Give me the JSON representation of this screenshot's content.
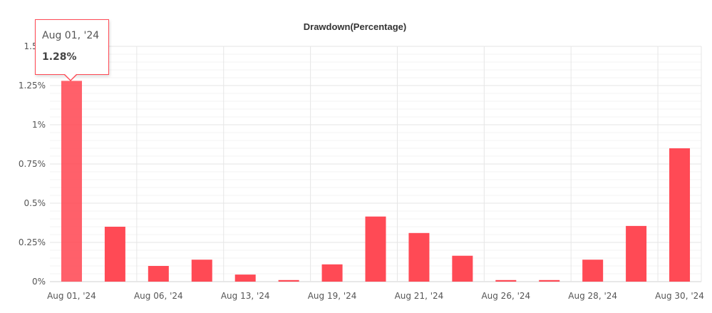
{
  "chart_data": {
    "type": "bar",
    "title": "Drawdown(Percentage)",
    "xlabel": "",
    "ylabel": "",
    "ylim": [
      0,
      1.5
    ],
    "yticks": [
      "0%",
      "0.25%",
      "0.5%",
      "0.75%",
      "1%",
      "1.25%",
      "1.5%"
    ],
    "xtick_labels": [
      "Aug 01, '24",
      "Aug 06, '24",
      "Aug 13, '24",
      "Aug 19, '24",
      "Aug 21, '24",
      "Aug 26, '24",
      "Aug 28, '24",
      "Aug 30, '24"
    ],
    "values": [
      1.28,
      0.35,
      0.1,
      0.14,
      0.045,
      0.01,
      0.11,
      0.415,
      0.31,
      0.165,
      0.01,
      0.01,
      0.14,
      0.355,
      0.85
    ],
    "grid": true,
    "bar_color": "#ff4a55"
  },
  "tooltip": {
    "date": "Aug 01, '24",
    "value": "1.28%"
  }
}
